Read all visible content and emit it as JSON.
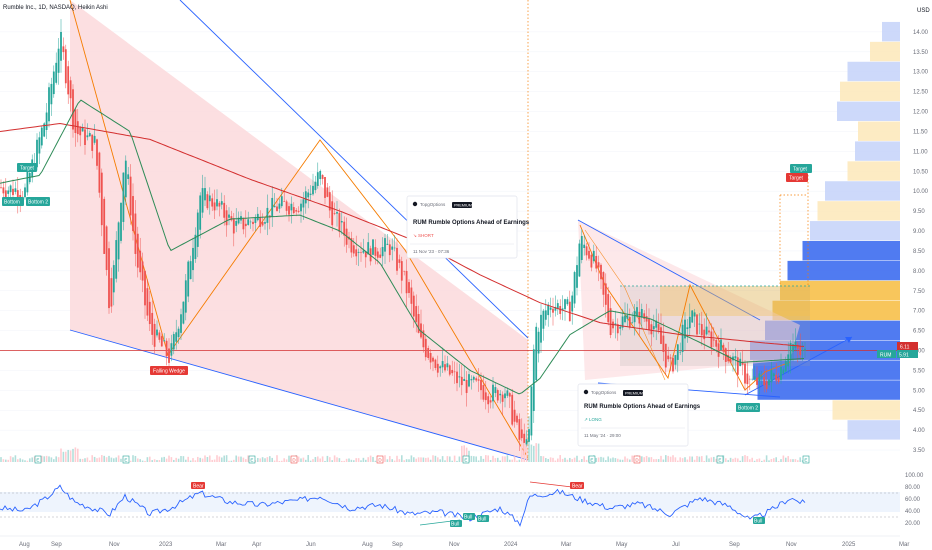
{
  "header": {
    "symbol_line": "Rumble Inc., 1D, NASDAQ, Heikin Ashi"
  },
  "colors": {
    "up": "#26a69a",
    "down": "#ef5350",
    "wedge_fill": "#fcd9dc",
    "wedge_line": "#2962ff",
    "ma_red": "#d32f2f",
    "ma_green": "#2e8b57",
    "zigzag": "#f57c00",
    "rsi": "#2962ff",
    "vp_blue": "#3d6df0",
    "vp_blue_light": "#c8d5f9",
    "vp_yellow": "#f7c04a",
    "vp_yellow_light": "#fde9bd"
  },
  "price_axis": {
    "currency": "USD",
    "ticks": [
      "14.00",
      "13.50",
      "13.00",
      "12.50",
      "12.00",
      "11.50",
      "11.00",
      "10.50",
      "10.00",
      "9.50",
      "9.00",
      "8.50",
      "8.00",
      "7.50",
      "7.00",
      "6.50",
      "6.00",
      "5.50",
      "5.00",
      "4.50",
      "4.00",
      "3.50"
    ],
    "last_price_label": "6.11",
    "symbol_price_tag": "RUM",
    "symbol_price_value": "5.91"
  },
  "rsi_axis": {
    "ticks": [
      "100.00",
      "80.00",
      "60.00",
      "40.00",
      "20.00"
    ]
  },
  "time_axis": {
    "labels": [
      "Aug",
      "Sep",
      "Nov",
      "2023",
      "Mar",
      "Apr",
      "Jun",
      "Aug",
      "Sep",
      "Nov",
      "2024",
      "Mar",
      "May",
      "Jul",
      "Sep",
      "Nov",
      "2025",
      "Mar"
    ]
  },
  "annotations": {
    "falling_wedge": "Falling Wedge",
    "target": "Target",
    "bottom": "Bottom",
    "bottom2": "Bottom 2",
    "bear": "Bear",
    "bull": "Bull",
    "event_e": "E",
    "event_d": "D"
  },
  "idea_cards": [
    {
      "brand": "TopgOptions",
      "badge": "PREMIUM",
      "title": "RUM Rumble Options Ahead of Earnings",
      "direction": "SHORT",
      "date": "11 Nov '23 · 07:36"
    },
    {
      "brand": "TopgOptions",
      "badge": "PREMIUM",
      "title": "RUM Rumble Options Ahead of Earnings",
      "direction": "LONG",
      "date": "11 May '24 · 29:00"
    }
  ],
  "chart_data": {
    "type": "candlestick",
    "title": "Rumble Inc., 1D, NASDAQ, Heikin Ashi",
    "ylim": [
      3.2,
      14.6
    ],
    "rsi_ylim": [
      0,
      100
    ],
    "series": [
      {
        "name": "RUM",
        "anchors": [
          [
            0,
            10.1
          ],
          [
            25,
            10.0
          ],
          [
            45,
            11.8
          ],
          [
            60,
            13.9
          ],
          [
            75,
            11.5
          ],
          [
            95,
            11.2
          ],
          [
            110,
            7.0
          ],
          [
            125,
            11.0
          ],
          [
            135,
            8.5
          ],
          [
            150,
            6.5
          ],
          [
            170,
            5.8
          ],
          [
            185,
            7.5
          ],
          [
            200,
            9.9
          ],
          [
            215,
            9.7
          ],
          [
            235,
            9.1
          ],
          [
            255,
            9.3
          ],
          [
            275,
            9.6
          ],
          [
            300,
            9.7
          ],
          [
            320,
            10.4
          ],
          [
            330,
            9.5
          ],
          [
            350,
            8.7
          ],
          [
            370,
            8.5
          ],
          [
            390,
            8.6
          ],
          [
            405,
            7.7
          ],
          [
            420,
            6.2
          ],
          [
            440,
            5.6
          ],
          [
            460,
            5.2
          ],
          [
            475,
            5.1
          ],
          [
            490,
            4.9
          ],
          [
            505,
            5.0
          ],
          [
            520,
            3.7
          ],
          [
            528,
            3.5
          ],
          [
            535,
            6.5
          ],
          [
            550,
            7.2
          ],
          [
            570,
            7.0
          ],
          [
            580,
            8.8
          ],
          [
            595,
            8.2
          ],
          [
            610,
            6.6
          ],
          [
            625,
            6.8
          ],
          [
            640,
            6.9
          ],
          [
            655,
            6.6
          ],
          [
            670,
            5.5
          ],
          [
            690,
            6.9
          ],
          [
            700,
            6.5
          ],
          [
            715,
            6.2
          ],
          [
            735,
            5.7
          ],
          [
            750,
            5.2
          ],
          [
            765,
            5.2
          ],
          [
            780,
            5.5
          ],
          [
            790,
            6.2
          ],
          [
            800,
            5.9
          ],
          [
            805,
            5.9
          ]
        ]
      },
      {
        "name": "MA200",
        "anchors": [
          [
            0,
            11.5
          ],
          [
            60,
            11.7
          ],
          [
            150,
            11.3
          ],
          [
            250,
            10.3
          ],
          [
            340,
            9.5
          ],
          [
            420,
            8.7
          ],
          [
            480,
            7.9
          ],
          [
            540,
            7.2
          ],
          [
            600,
            6.7
          ],
          [
            680,
            6.4
          ],
          [
            760,
            6.2
          ],
          [
            805,
            6.1
          ]
        ]
      },
      {
        "name": "MA50",
        "anchors": [
          [
            0,
            10.2
          ],
          [
            40,
            10.4
          ],
          [
            80,
            12.3
          ],
          [
            130,
            11.5
          ],
          [
            170,
            8.5
          ],
          [
            230,
            9.3
          ],
          [
            300,
            9.4
          ],
          [
            340,
            9.0
          ],
          [
            380,
            8.2
          ],
          [
            420,
            6.5
          ],
          [
            470,
            5.5
          ],
          [
            520,
            4.9
          ],
          [
            540,
            5.3
          ],
          [
            570,
            6.4
          ],
          [
            610,
            7.0
          ],
          [
            650,
            6.8
          ],
          [
            700,
            6.2
          ],
          [
            740,
            5.7
          ],
          [
            805,
            5.8
          ]
        ]
      },
      {
        "name": "RSI",
        "anchors": [
          [
            0,
            45
          ],
          [
            25,
            40
          ],
          [
            45,
            60
          ],
          [
            60,
            80
          ],
          [
            75,
            55
          ],
          [
            110,
            35
          ],
          [
            125,
            65
          ],
          [
            150,
            35
          ],
          [
            170,
            45
          ],
          [
            200,
            70
          ],
          [
            230,
            55
          ],
          [
            260,
            50
          ],
          [
            300,
            58
          ],
          [
            320,
            65
          ],
          [
            350,
            45
          ],
          [
            380,
            50
          ],
          [
            410,
            35
          ],
          [
            440,
            38
          ],
          [
            470,
            28
          ],
          [
            500,
            45
          ],
          [
            520,
            20
          ],
          [
            530,
            65
          ],
          [
            560,
            72
          ],
          [
            580,
            60
          ],
          [
            610,
            45
          ],
          [
            640,
            52
          ],
          [
            670,
            35
          ],
          [
            700,
            62
          ],
          [
            730,
            48
          ],
          [
            750,
            25
          ],
          [
            770,
            40
          ],
          [
            790,
            62
          ],
          [
            805,
            52
          ]
        ]
      }
    ],
    "levels": {
      "horizontal_resistance": 6.0
    },
    "volume_profile": [
      {
        "price": 4.0,
        "size": 0.35,
        "color": "blue_light"
      },
      {
        "price": 4.5,
        "size": 0.45,
        "color": "yellow_light"
      },
      {
        "price": 5.0,
        "size": 0.95,
        "color": "blue"
      },
      {
        "price": 5.5,
        "size": 0.98,
        "color": "blue"
      },
      {
        "price": 6.0,
        "size": 1.0,
        "color": "blue"
      },
      {
        "price": 6.5,
        "size": 0.9,
        "color": "blue"
      },
      {
        "price": 7.0,
        "size": 0.85,
        "color": "yellow"
      },
      {
        "price": 7.5,
        "size": 0.8,
        "color": "yellow"
      },
      {
        "price": 8.0,
        "size": 0.75,
        "color": "blue"
      },
      {
        "price": 8.5,
        "size": 0.65,
        "color": "blue"
      },
      {
        "price": 9.0,
        "size": 0.6,
        "color": "blue_light"
      },
      {
        "price": 9.5,
        "size": 0.55,
        "color": "yellow_light"
      },
      {
        "price": 10.0,
        "size": 0.5,
        "color": "blue_light"
      },
      {
        "price": 10.5,
        "size": 0.35,
        "color": "yellow_light"
      },
      {
        "price": 11.0,
        "size": 0.3,
        "color": "blue_light"
      },
      {
        "price": 11.5,
        "size": 0.28,
        "color": "yellow_light"
      },
      {
        "price": 12.0,
        "size": 0.42,
        "color": "blue_light"
      },
      {
        "price": 12.5,
        "size": 0.4,
        "color": "yellow_light"
      },
      {
        "price": 13.0,
        "size": 0.35,
        "color": "blue_light"
      },
      {
        "price": 13.5,
        "size": 0.2,
        "color": "yellow_light"
      },
      {
        "price": 14.0,
        "size": 0.12,
        "color": "blue_light"
      }
    ]
  }
}
